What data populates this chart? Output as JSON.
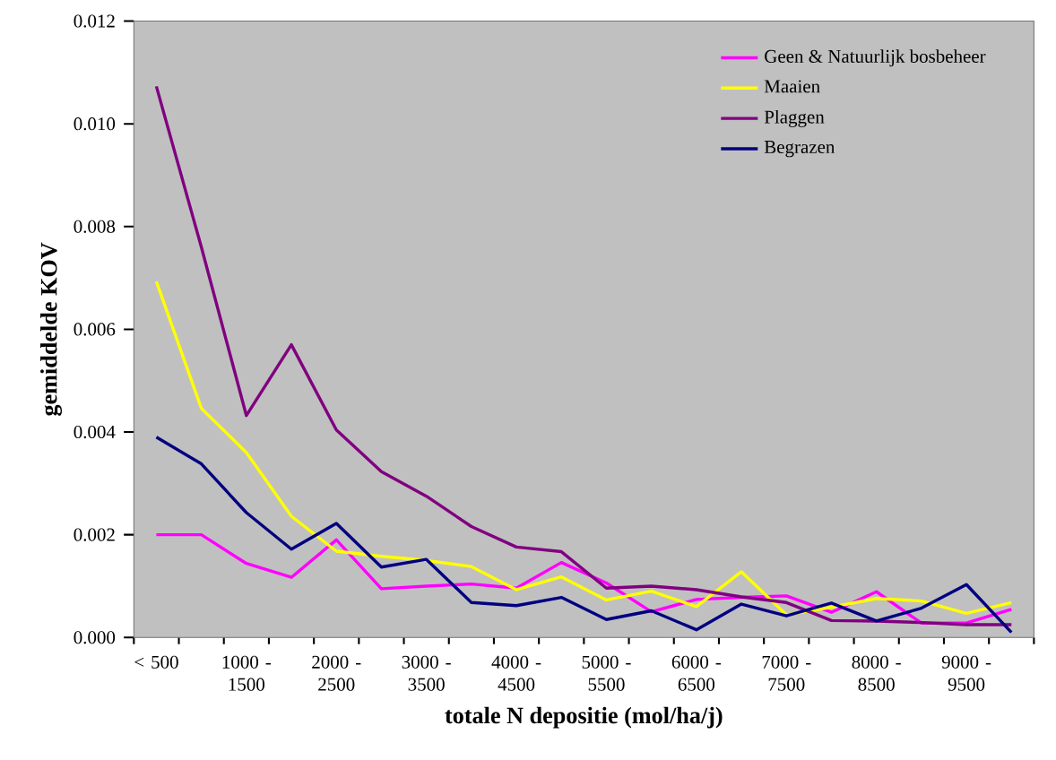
{
  "chart_data": {
    "type": "line",
    "xlabel": "totale N depositie (mol/ha/j)",
    "ylabel": "gemiddelde KOV",
    "categories": [
      "< 500",
      null,
      "1000 - 1500",
      null,
      "2000 - 2500",
      null,
      "3000 - 3500",
      null,
      "4000 - 4500",
      null,
      "5000 - 5500",
      null,
      "6000 - 6500",
      null,
      "7000 - 7500",
      null,
      "8000 - 8500",
      null,
      "9000 - 9500",
      null
    ],
    "series": [
      {
        "name": "Geen & Natuurlijk bosbeheer",
        "color": "#ff00ff",
        "values": [
          0.002,
          0.002,
          0.00144,
          0.00117,
          0.0019,
          0.00095,
          0.001,
          0.00104,
          0.00096,
          0.00146,
          0.00106,
          0.0005,
          0.00074,
          0.00078,
          0.00081,
          0.00049,
          0.00089,
          0.00028,
          0.00028,
          0.00055
        ]
      },
      {
        "name": "Maaien",
        "color": "#ffff00",
        "values": [
          0.00693,
          0.00446,
          0.0036,
          0.00236,
          0.00168,
          0.00158,
          0.0015,
          0.00138,
          0.00093,
          0.00118,
          0.00073,
          0.0009,
          0.0006,
          0.00128,
          0.00044,
          0.00059,
          0.00076,
          0.00071,
          0.00047,
          0.00068
        ]
      },
      {
        "name": "Plaggen",
        "color": "#800080",
        "values": [
          0.01073,
          0.0076,
          0.00432,
          0.0057,
          0.00404,
          0.00323,
          0.00275,
          0.00216,
          0.00176,
          0.00167,
          0.00096,
          0.001,
          0.00093,
          0.00079,
          0.00068,
          0.00033,
          0.00032,
          0.00029,
          0.00025,
          0.00025
        ]
      },
      {
        "name": "Begrazen",
        "color": "#000080",
        "values": [
          0.0039,
          0.00338,
          0.00243,
          0.00172,
          0.00222,
          0.00137,
          0.00152,
          0.00068,
          0.00062,
          0.00078,
          0.00035,
          0.00052,
          0.00015,
          0.00065,
          0.00042,
          0.00067,
          0.00032,
          0.00057,
          0.00103,
          0.0001
        ]
      }
    ],
    "ylim": [
      0,
      0.012
    ],
    "yticks": [
      {
        "value": 0,
        "label": "0.000"
      },
      {
        "value": 0.002,
        "label": "0.002"
      },
      {
        "value": 0.004,
        "label": "0.004"
      },
      {
        "value": 0.006,
        "label": "0.006"
      },
      {
        "value": 0.008,
        "label": "0.008"
      },
      {
        "value": 0.01,
        "label": "0.010"
      },
      {
        "value": 0.012,
        "label": "0.012"
      }
    ],
    "legend": "top right",
    "marker": "none",
    "line_style": "solid"
  }
}
